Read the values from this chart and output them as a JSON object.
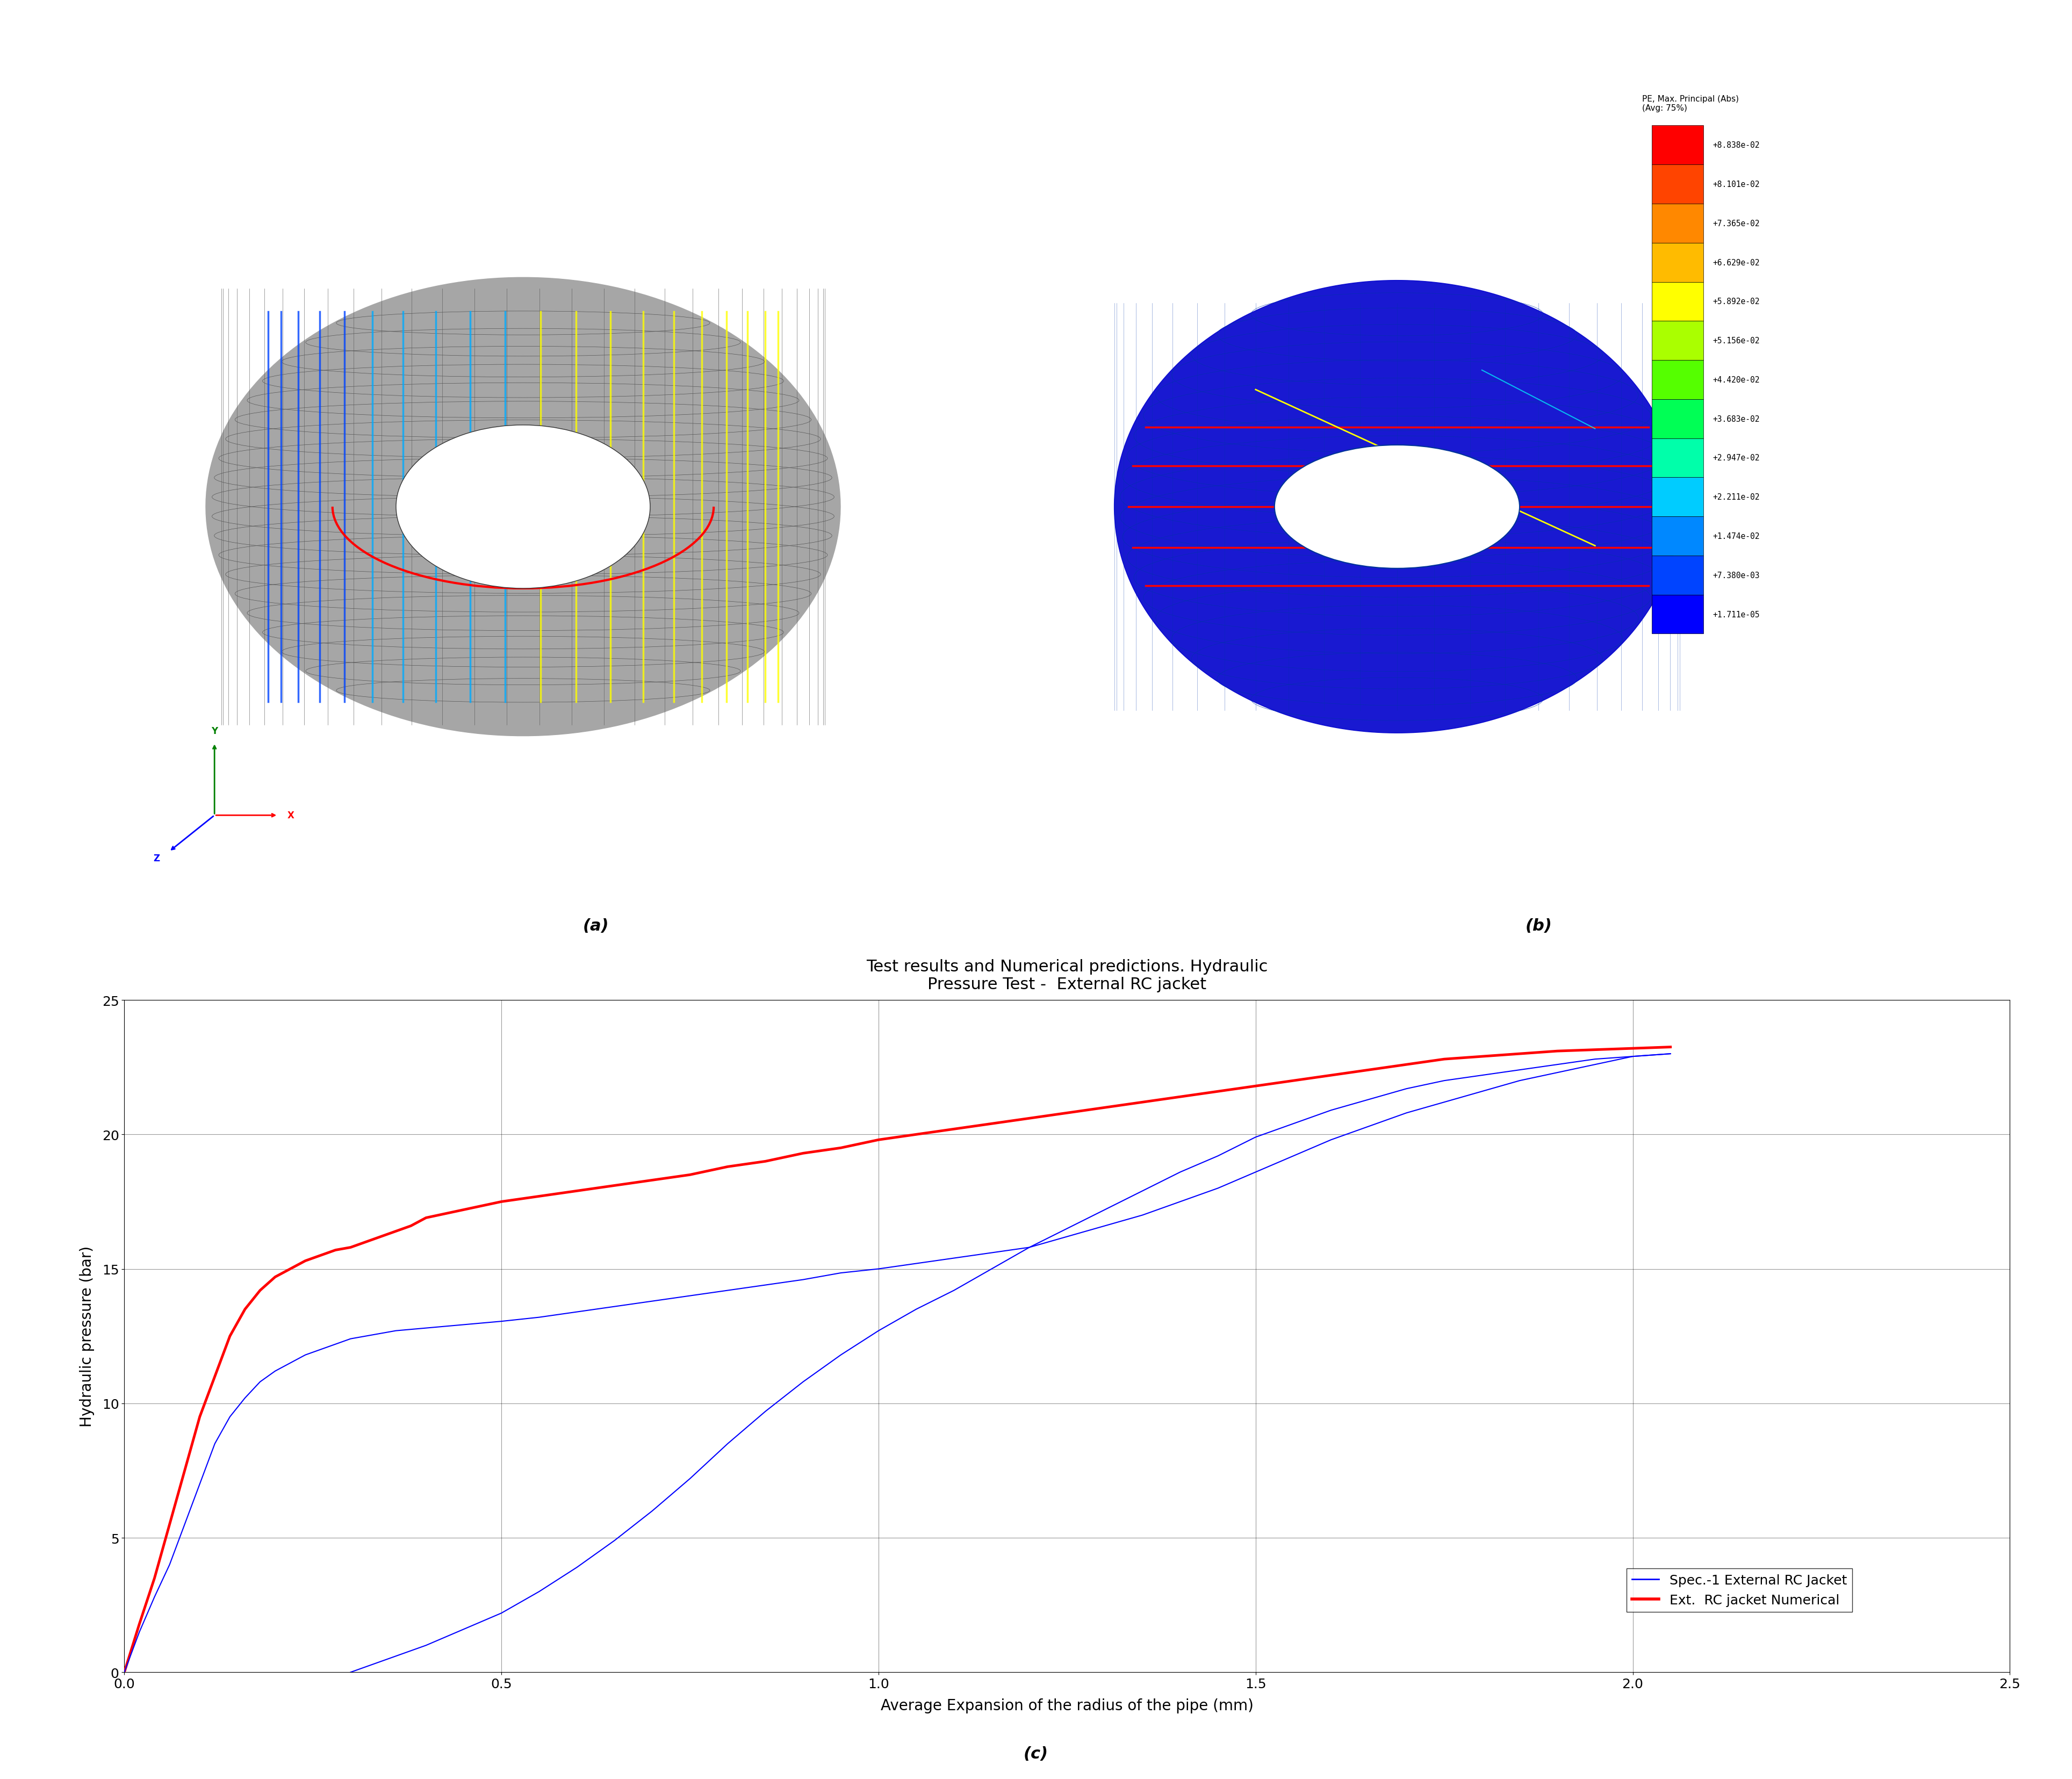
{
  "title": "Test results and Numerical predictions. Hydraulic\nPressure Test -  External RC jacket",
  "xlabel": "Average Expansion of the radius of the pipe (mm)",
  "ylabel": "Hydraulic pressure (bar)",
  "xlim": [
    0,
    2.5
  ],
  "ylim": [
    0,
    25
  ],
  "xticks": [
    0,
    0.5,
    1.0,
    1.5,
    2.0,
    2.5
  ],
  "yticks": [
    0,
    5,
    10,
    15,
    20,
    25
  ],
  "colorbar_title": "PE, Max. Principal (Abs)\n(Avg: 75%)",
  "colorbar_labels": [
    "+8.838e-02",
    "+8.101e-02",
    "+7.365e-02",
    "+6.629e-02",
    "+5.892e-02",
    "+5.156e-02",
    "+4.420e-02",
    "+3.683e-02",
    "+2.947e-02",
    "+2.211e-02",
    "+1.474e-02",
    "+7.380e-03",
    "+1.711e-05"
  ],
  "colorbar_colors": [
    "#FF0000",
    "#FF4400",
    "#FF8800",
    "#FFBB00",
    "#FFFF00",
    "#AAFF00",
    "#55FF00",
    "#00FF55",
    "#00FFAA",
    "#00CCFF",
    "#0088FF",
    "#0044FF",
    "#0000FF"
  ],
  "legend_spec1": "Spec.-1 External RC Jacket",
  "legend_spec2": "Ext.  RC jacket Numerical",
  "label_a": "(a)",
  "label_b": "(b)",
  "label_c": "(c)",
  "blue_x1": [
    0.0,
    0.02,
    0.04,
    0.06,
    0.08,
    0.1,
    0.12,
    0.14,
    0.16,
    0.18,
    0.2,
    0.22,
    0.24,
    0.26,
    0.28,
    0.3,
    0.32,
    0.34,
    0.36,
    0.38,
    0.4,
    0.42,
    0.44,
    0.46,
    0.48,
    0.5,
    0.55,
    0.6,
    0.65,
    0.7,
    0.75,
    0.8,
    0.85,
    0.9,
    0.95,
    1.0,
    1.05,
    1.1,
    1.15,
    1.2,
    1.25,
    1.3,
    1.35,
    1.4,
    1.45,
    1.5,
    1.55,
    1.6,
    1.65,
    1.7,
    1.75,
    1.8,
    1.85,
    1.9,
    1.95,
    2.0,
    2.05
  ],
  "blue_y1": [
    0.0,
    1.5,
    2.8,
    4.0,
    5.5,
    7.0,
    8.5,
    9.5,
    10.2,
    10.8,
    11.2,
    11.5,
    11.8,
    12.0,
    12.2,
    12.4,
    12.5,
    12.6,
    12.7,
    12.75,
    12.8,
    12.85,
    12.9,
    12.95,
    13.0,
    13.05,
    13.2,
    13.4,
    13.6,
    13.8,
    14.0,
    14.2,
    14.4,
    14.6,
    14.85,
    15.0,
    15.2,
    15.4,
    15.6,
    15.8,
    16.2,
    16.6,
    17.0,
    17.5,
    18.0,
    18.6,
    19.2,
    19.8,
    20.3,
    20.8,
    21.2,
    21.6,
    22.0,
    22.3,
    22.6,
    22.9,
    23.0
  ],
  "blue_x2": [
    0.3,
    0.32,
    0.34,
    0.36,
    0.38,
    0.4,
    0.45,
    0.5,
    0.55,
    0.6,
    0.65,
    0.7,
    0.75,
    0.8,
    0.85,
    0.9,
    0.95,
    1.0,
    1.05,
    1.1,
    1.15,
    1.2,
    1.25,
    1.3,
    1.35,
    1.4,
    1.45,
    1.5,
    1.55,
    1.6,
    1.65,
    1.7,
    1.75,
    1.8,
    1.85,
    1.9,
    1.95,
    2.0,
    2.05
  ],
  "blue_y2": [
    0.0,
    0.2,
    0.4,
    0.6,
    0.8,
    1.0,
    1.6,
    2.2,
    3.0,
    3.9,
    4.9,
    6.0,
    7.2,
    8.5,
    9.7,
    10.8,
    11.8,
    12.7,
    13.5,
    14.2,
    15.0,
    15.8,
    16.5,
    17.2,
    17.9,
    18.6,
    19.2,
    19.9,
    20.4,
    20.9,
    21.3,
    21.7,
    22.0,
    22.2,
    22.4,
    22.6,
    22.8,
    22.9,
    23.0
  ],
  "red_x": [
    0.0,
    0.02,
    0.04,
    0.06,
    0.08,
    0.1,
    0.12,
    0.14,
    0.16,
    0.18,
    0.2,
    0.22,
    0.24,
    0.26,
    0.28,
    0.3,
    0.32,
    0.34,
    0.36,
    0.38,
    0.4,
    0.45,
    0.5,
    0.55,
    0.6,
    0.65,
    0.7,
    0.75,
    0.8,
    0.85,
    0.9,
    0.95,
    1.0,
    1.05,
    1.1,
    1.15,
    1.2,
    1.25,
    1.3,
    1.35,
    1.4,
    1.45,
    1.5,
    1.55,
    1.6,
    1.65,
    1.7,
    1.75,
    1.8,
    1.85,
    1.9,
    1.95,
    2.0,
    2.05
  ],
  "red_y": [
    0.0,
    1.8,
    3.5,
    5.5,
    7.5,
    9.5,
    11.0,
    12.5,
    13.5,
    14.2,
    14.7,
    15.0,
    15.3,
    15.5,
    15.7,
    15.8,
    16.0,
    16.2,
    16.4,
    16.6,
    16.9,
    17.2,
    17.5,
    17.7,
    17.9,
    18.1,
    18.3,
    18.5,
    18.8,
    19.0,
    19.3,
    19.5,
    19.8,
    20.0,
    20.2,
    20.4,
    20.6,
    20.8,
    21.0,
    21.2,
    21.4,
    21.6,
    21.8,
    22.0,
    22.2,
    22.4,
    22.6,
    22.8,
    22.9,
    23.0,
    23.1,
    23.15,
    23.2,
    23.25
  ]
}
